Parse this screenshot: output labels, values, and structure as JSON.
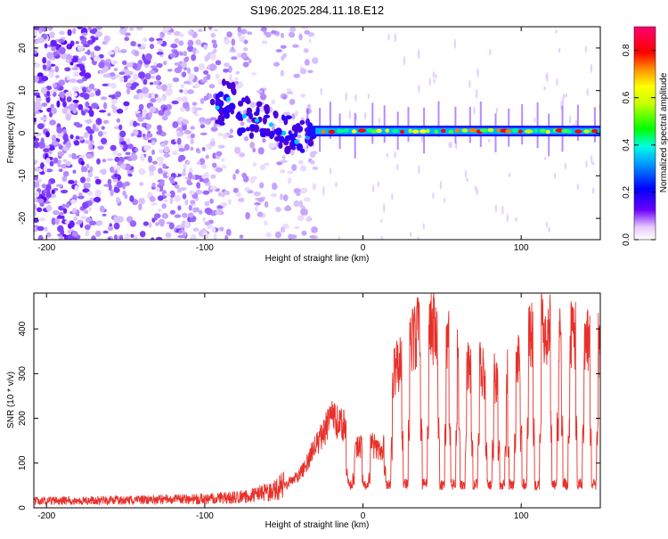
{
  "chart_data": [
    {
      "type": "heatmap",
      "title": "S196.2025.284.11.18.E12",
      "xlabel": "Height of straight line (km)",
      "ylabel": "Frequency (Hz)",
      "xlim": [
        -208,
        150
      ],
      "ylim": [
        -25,
        25
      ],
      "xticks": [
        -200,
        -100,
        0,
        100
      ],
      "yticks": [
        -20,
        -10,
        0,
        10,
        20
      ],
      "xtick_labels": [
        "-200",
        "-100",
        "0",
        "100"
      ],
      "ytick_labels": [
        "-20",
        "-10",
        "0",
        "10",
        "20"
      ],
      "colorbar": {
        "label": "Normalized spectral amplitude",
        "range": [
          0,
          0.9
        ],
        "ticks": [
          0.0,
          0.2,
          0.4,
          0.6,
          0.8
        ],
        "tick_labels": [
          "0.0",
          "0.2",
          "0.4",
          "0.6",
          "0.8"
        ],
        "colormap": [
          "#ffffff",
          "#6a00ff",
          "#0000ff",
          "#00c8ff",
          "#00ff00",
          "#ffff00",
          "#ff8000",
          "#ff0000",
          "#ff0066"
        ]
      },
      "features": {
        "noise_region_x": [
          -208,
          -35
        ],
        "emerging_signal": [
          {
            "x": -92,
            "f": 6
          },
          {
            "x": -85,
            "f": 8
          },
          {
            "x": -75,
            "f": 4
          },
          {
            "x": -67,
            "f": 3
          },
          {
            "x": -58,
            "f": 2
          },
          {
            "x": -50,
            "f": 0
          },
          {
            "x": -42,
            "f": -2
          },
          {
            "x": -35,
            "f": -1
          }
        ],
        "signal_band_x": [
          -35,
          150
        ],
        "signal_band_freq": 0.5
      }
    },
    {
      "type": "line",
      "xlabel": "Height of straight line (km)",
      "ylabel": "SNR (10 * v/v)",
      "xlim": [
        -208,
        150
      ],
      "ylim": [
        0,
        480
      ],
      "xticks": [
        -200,
        -100,
        0,
        100
      ],
      "yticks": [
        0,
        100,
        200,
        300,
        400
      ],
      "xtick_labels": [
        "-200",
        "-100",
        "0",
        "100"
      ],
      "ytick_labels": [
        "0",
        "100",
        "200",
        "300",
        "400"
      ],
      "color": "#e8302a",
      "envelope": [
        {
          "x": -208,
          "y": 15
        },
        {
          "x": -150,
          "y": 17
        },
        {
          "x": -100,
          "y": 20
        },
        {
          "x": -75,
          "y": 25
        },
        {
          "x": -55,
          "y": 40
        },
        {
          "x": -40,
          "y": 80
        },
        {
          "x": -30,
          "y": 150
        },
        {
          "x": -20,
          "y": 220
        },
        {
          "x": -12,
          "y": 200
        },
        {
          "x": -5,
          "y": 150
        },
        {
          "x": 5,
          "y": 160
        },
        {
          "x": 12,
          "y": 130
        },
        {
          "x": 18,
          "y": 320
        },
        {
          "x": 25,
          "y": 380
        },
        {
          "x": 35,
          "y": 430
        },
        {
          "x": 45,
          "y": 440
        },
        {
          "x": 55,
          "y": 400
        },
        {
          "x": 65,
          "y": 360
        },
        {
          "x": 75,
          "y": 340
        },
        {
          "x": 85,
          "y": 310
        },
        {
          "x": 95,
          "y": 330
        },
        {
          "x": 105,
          "y": 420
        },
        {
          "x": 115,
          "y": 440
        },
        {
          "x": 125,
          "y": 430
        },
        {
          "x": 135,
          "y": 420
        },
        {
          "x": 150,
          "y": 400
        }
      ],
      "dropouts_x": [
        -8,
        2,
        16,
        27,
        39,
        50,
        57,
        63,
        71,
        80,
        88,
        94,
        102,
        110,
        121,
        128,
        137,
        146
      ]
    }
  ]
}
